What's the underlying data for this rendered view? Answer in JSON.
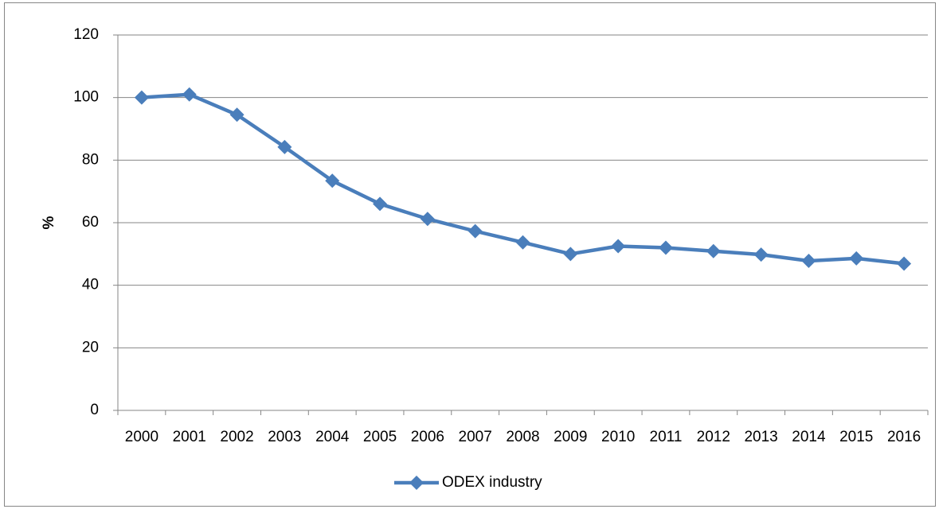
{
  "chart_data": {
    "type": "line",
    "y_label": "%",
    "categories": [
      "2000",
      "2001",
      "2002",
      "2003",
      "2004",
      "2005",
      "2006",
      "2007",
      "2008",
      "2009",
      "2010",
      "2011",
      "2012",
      "2013",
      "2014",
      "2015",
      "2016"
    ],
    "series": [
      {
        "name": "ODEX industry",
        "color": "#4a7ebb",
        "values": [
          100,
          101,
          94.5,
          84.2,
          73.4,
          66,
          61.2,
          57.3,
          53.7,
          50,
          52.5,
          52,
          50.9,
          49.8,
          47.8,
          48.6,
          46.9
        ]
      }
    ],
    "ylim": [
      0,
      120
    ],
    "yticks": [
      0,
      20,
      40,
      60,
      80,
      100,
      120
    ],
    "grid": true,
    "legend": "bottom"
  }
}
